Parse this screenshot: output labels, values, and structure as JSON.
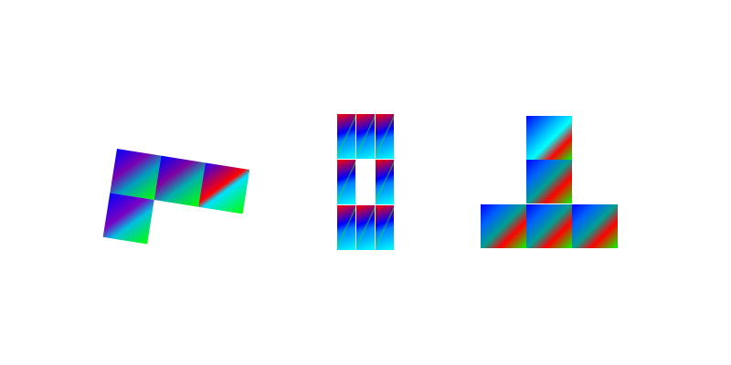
{
  "scene": {
    "shapes": [
      {
        "name": "tilted-l-shape",
        "tiles": 4
      },
      {
        "name": "ring-shape",
        "tiles": 8
      },
      {
        "name": "inverted-t-shape",
        "tiles": 5
      }
    ],
    "colors": {
      "background": "#ffffff",
      "gradient_red": "#ff0000",
      "gradient_green": "#00ff00",
      "gradient_blue": "#0000ff",
      "gradient_cyan": "#00ffff"
    }
  }
}
